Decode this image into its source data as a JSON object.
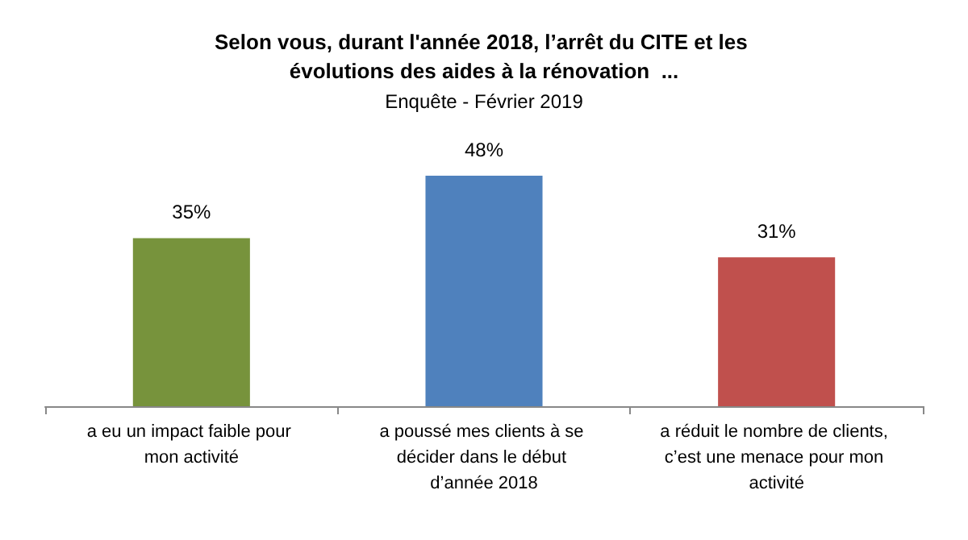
{
  "chart_data": {
    "type": "bar",
    "title": "Selon vous, durant l'année 2018, l’arrêt du CITE et les évolutions des aides à la rénovation  ...",
    "subtitle": "Enquête - Février 2019",
    "categories": [
      "a eu un impact faible pour mon activité",
      "a poussé mes clients à se décider dans le début d’année 2018",
      "a réduit le nombre de clients, c’est une menace pour mon activité"
    ],
    "values": [
      35,
      48,
      31
    ],
    "colors": [
      "#77933c",
      "#4f81bd",
      "#c0504d"
    ],
    "value_labels": [
      "35%",
      "48%",
      "31%"
    ]
  }
}
